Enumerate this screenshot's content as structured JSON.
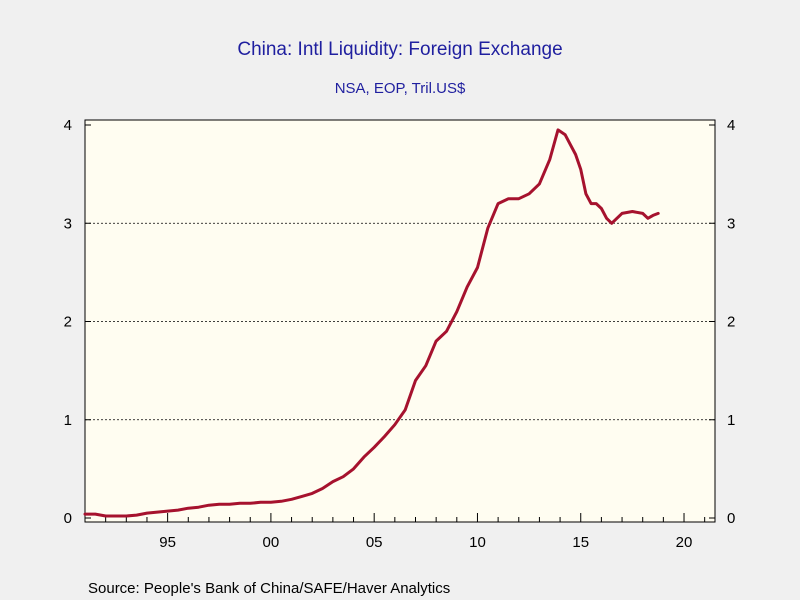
{
  "chart_data": {
    "type": "line",
    "title": "China: Intl Liquidity: Foreign Exchange",
    "subtitle": "NSA, EOP, Tril.US$",
    "source": "Source:  People's Bank of China/SAFE/Haver Analytics",
    "xlabel": "",
    "ylabel": "",
    "xlim": [
      1991.0,
      2021.5
    ],
    "ylim": [
      0,
      4
    ],
    "grid": true,
    "legend": "none",
    "x_ticks": [
      {
        "value": 1995,
        "label": "95"
      },
      {
        "value": 2000,
        "label": "00"
      },
      {
        "value": 2005,
        "label": "05"
      },
      {
        "value": 2010,
        "label": "10"
      },
      {
        "value": 2015,
        "label": "15"
      },
      {
        "value": 2020,
        "label": "20"
      }
    ],
    "y_ticks_left": [
      {
        "value": 0,
        "label": "0"
      },
      {
        "value": 1,
        "label": "1"
      },
      {
        "value": 2,
        "label": "2"
      },
      {
        "value": 3,
        "label": "3"
      },
      {
        "value": 4,
        "label": "4"
      }
    ],
    "y_ticks_right": [
      {
        "value": 0,
        "label": "0"
      },
      {
        "value": 1,
        "label": "1"
      },
      {
        "value": 2,
        "label": "2"
      },
      {
        "value": 3,
        "label": "3"
      },
      {
        "value": 4,
        "label": "4"
      }
    ],
    "colors": {
      "series": "#a6122e",
      "plot_bg": "#fffdf1",
      "page_bg": "#f0f0f0",
      "title": "#1f1f9f"
    },
    "series": [
      {
        "x": [
          1991.0,
          1991.5,
          1992.0,
          1992.5,
          1993.0,
          1993.5,
          1994.0,
          1994.5,
          1995.0,
          1995.5,
          1996.0,
          1996.5,
          1997.0,
          1997.5,
          1998.0,
          1998.5,
          1999.0,
          1999.5,
          2000.0,
          2000.5,
          2001.0,
          2001.5,
          2002.0,
          2002.5,
          2003.0,
          2003.5,
          2004.0,
          2004.5,
          2005.0,
          2005.5,
          2006.0,
          2006.5,
          2007.0,
          2007.5,
          2008.0,
          2008.5,
          2009.0,
          2009.5,
          2010.0,
          2010.5,
          2011.0,
          2011.5,
          2012.0,
          2012.5,
          2013.0,
          2013.5,
          2013.9,
          2014.25,
          2014.5,
          2014.75,
          2015.0,
          2015.25,
          2015.5,
          2015.75,
          2016.0,
          2016.25,
          2016.5,
          2016.75,
          2017.0,
          2017.5,
          2018.0,
          2018.25,
          2018.5,
          2018.75
        ],
        "values": [
          0.04,
          0.04,
          0.02,
          0.02,
          0.02,
          0.03,
          0.05,
          0.06,
          0.07,
          0.08,
          0.1,
          0.11,
          0.13,
          0.14,
          0.14,
          0.15,
          0.15,
          0.16,
          0.16,
          0.17,
          0.19,
          0.22,
          0.25,
          0.3,
          0.37,
          0.42,
          0.5,
          0.62,
          0.72,
          0.83,
          0.95,
          1.1,
          1.4,
          1.55,
          1.8,
          1.9,
          2.1,
          2.35,
          2.55,
          2.95,
          3.2,
          3.25,
          3.25,
          3.3,
          3.4,
          3.65,
          3.95,
          3.9,
          3.8,
          3.7,
          3.55,
          3.3,
          3.2,
          3.2,
          3.15,
          3.05,
          3.0,
          3.05,
          3.1,
          3.12,
          3.1,
          3.05,
          3.08,
          3.1
        ]
      }
    ]
  }
}
